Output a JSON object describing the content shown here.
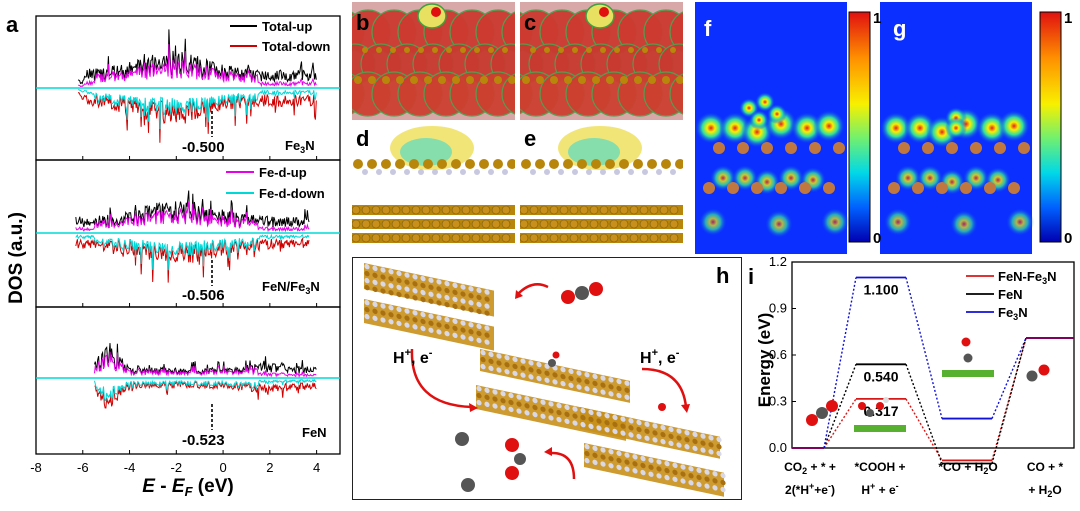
{
  "panels": {
    "a": "a",
    "b": "b",
    "c": "c",
    "d": "d",
    "e": "e",
    "f": "f",
    "g": "g",
    "h": "h",
    "i": "i"
  },
  "colors": {
    "total_up": "#000000",
    "total_down": "#d00000",
    "fe_d_up": "#e800e8",
    "fe_d_down": "#00d8d8",
    "fen_fe3n": "#d81818",
    "fen": "#000000",
    "fe3n": "#1010d8",
    "iron_atom": "#b8860b",
    "nitrogen_atom": "#c8c8e0",
    "oxygen_atom": "#e01010",
    "carbon_atom": "#555555",
    "surface_bar": "#58b030",
    "reaction_arrow": "#e01010"
  },
  "chart_data": [
    {
      "type": "line",
      "panel": "a",
      "ylabel": "DOS (a.u.)",
      "xlabel": "E - E_F (eV)",
      "xlim": [
        -8,
        5
      ],
      "xticks": [
        "-8",
        "-6",
        "-4",
        "-2",
        "0",
        "2",
        "4"
      ],
      "legend_placement": "top-right",
      "subplots": [
        {
          "material": "Fe3N",
          "material_main": "Fe",
          "material_sub": "3",
          "material_tail": "N",
          "legend": [
            "Total-up",
            "Total-down"
          ],
          "marker_value": "-0.500",
          "marker_x": -0.5
        },
        {
          "material": "FeN/Fe3N",
          "material_main": "FeN/Fe",
          "material_sub": "3",
          "material_tail": "N",
          "legend": [
            "Fe-d-up",
            "Fe-d-down"
          ],
          "marker_value": "-0.506",
          "marker_x": -0.506
        },
        {
          "material": "FeN",
          "material_main": "FeN",
          "material_sub": "",
          "material_tail": "",
          "legend": [],
          "marker_value": "-0.523",
          "marker_x": -0.523
        }
      ]
    },
    {
      "type": "heatmap",
      "panel": "f",
      "colorbar_ticks": [
        "1",
        "0"
      ]
    },
    {
      "type": "heatmap",
      "panel": "g",
      "colorbar_ticks": [
        "1",
        "0"
      ]
    },
    {
      "type": "line",
      "panel": "i",
      "ylabel": "Energy (eV)",
      "ylim": [
        0,
        1.2
      ],
      "yticks": [
        "0.0",
        "0.3",
        "0.6",
        "0.9",
        "1.2"
      ],
      "categories": [
        "CO2 + * + 2(*H+ + e-)",
        "*COOH + H+ + e-",
        "*CO + H2O",
        "CO + * + H2O"
      ],
      "category_lines": [
        [
          "CO",
          "2",
          " + * +"
        ],
        [
          "2(*H",
          "+",
          "+e",
          "-",
          ")"
        ],
        [
          "*COOH +"
        ],
        [
          "H",
          "+",
          " + e",
          "-"
        ],
        [
          "*CO + H",
          "2",
          "O"
        ],
        [
          "CO + *"
        ],
        [
          "+ H",
          "2",
          "O"
        ]
      ],
      "legend_placement": "top-right",
      "series": [
        {
          "name": "FeN-Fe3N",
          "name_main": "FeN-Fe",
          "name_sub": "3",
          "name_tail": "N",
          "values": [
            0.0,
            0.317,
            -0.08,
            0.71
          ]
        },
        {
          "name": "FeN",
          "name_main": "FeN",
          "name_sub": "",
          "name_tail": "",
          "values": [
            0.0,
            0.54,
            -0.1,
            0.71
          ]
        },
        {
          "name": "Fe3N",
          "name_main": "Fe",
          "name_sub": "3",
          "name_tail": "N",
          "values": [
            0.0,
            1.1,
            0.19,
            0.71
          ]
        }
      ],
      "annotations": [
        "1.100",
        "0.540",
        "0.317"
      ]
    }
  ],
  "panel_h": {
    "labels": [
      "H+, e-",
      "H+, e-"
    ],
    "label_main": "H",
    "label_sup1": "+",
    "label_mid": ", e",
    "label_sup2": "-"
  }
}
